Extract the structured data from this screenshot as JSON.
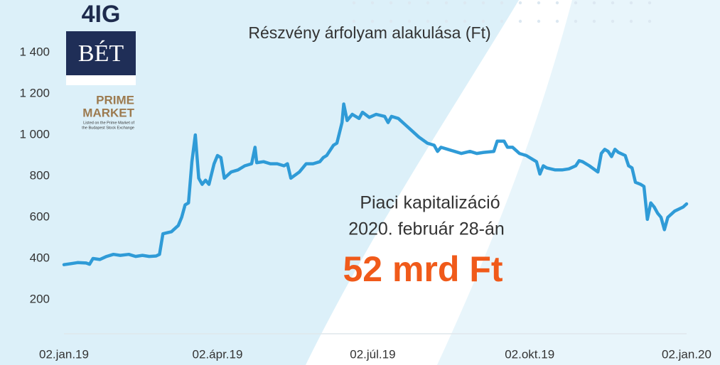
{
  "logo": {
    "company": "4IG",
    "exchange": "BÉT",
    "line1": "PRIME",
    "line2": "MARKET",
    "caption1": "Listed on the Prime Market of",
    "caption2": "the Budapest Stock Exchange"
  },
  "chart_data": {
    "type": "line",
    "title": "Részvény árfolyam alakulása (Ft)",
    "annotations": [
      "Piaci kapitalizáció",
      "2020. február 28-án",
      "52 mrd Ft"
    ],
    "color": "#2f9bd7",
    "x": [
      0,
      4,
      8,
      13,
      15,
      17,
      21,
      25,
      29,
      33,
      38,
      42,
      46,
      50,
      54,
      56,
      58,
      63,
      67,
      69,
      71,
      73,
      75,
      77,
      79,
      81,
      83,
      85,
      88,
      90,
      92,
      94,
      98,
      102,
      106,
      110,
      112,
      113,
      117,
      121,
      125,
      129,
      131,
      133,
      138,
      142,
      146,
      150,
      152,
      154,
      158,
      160,
      163,
      164,
      166,
      169,
      173,
      175,
      179,
      183,
      188,
      190,
      192,
      196,
      200,
      204,
      208,
      213,
      217,
      219,
      221,
      225,
      229,
      233,
      238,
      242,
      246,
      252,
      254,
      258,
      260,
      263,
      267,
      271,
      275,
      277,
      279,
      281,
      283,
      288,
      292,
      296,
      300,
      302,
      304,
      308,
      313,
      315,
      317,
      319,
      321,
      323,
      325,
      329,
      331,
      333,
      335,
      338,
      340,
      342,
      344,
      346,
      348,
      350,
      352,
      354,
      358,
      363,
      365
    ],
    "values": [
      370,
      375,
      380,
      378,
      372,
      400,
      395,
      410,
      420,
      415,
      420,
      410,
      415,
      410,
      412,
      420,
      520,
      530,
      560,
      600,
      660,
      670,
      870,
      1000,
      790,
      760,
      780,
      760,
      860,
      900,
      890,
      790,
      820,
      830,
      850,
      860,
      940,
      865,
      870,
      860,
      860,
      850,
      860,
      790,
      820,
      860,
      860,
      870,
      890,
      900,
      950,
      960,
      1060,
      1150,
      1070,
      1100,
      1080,
      1110,
      1085,
      1100,
      1090,
      1060,
      1090,
      1080,
      1050,
      1020,
      990,
      960,
      950,
      920,
      940,
      930,
      920,
      910,
      920,
      910,
      915,
      920,
      970,
      970,
      940,
      940,
      910,
      900,
      880,
      870,
      810,
      850,
      840,
      830,
      830,
      835,
      850,
      875,
      870,
      850,
      820,
      910,
      930,
      920,
      895,
      930,
      915,
      900,
      850,
      840,
      770,
      760,
      750,
      590,
      670,
      650,
      620,
      600,
      540,
      600,
      630,
      650,
      665
    ],
    "xlim": [
      0,
      365
    ],
    "xticks": [
      {
        "value": 0,
        "label": "02.jan.19"
      },
      {
        "value": 90,
        "label": "02.ápr.19"
      },
      {
        "value": 181,
        "label": "02.júl.19"
      },
      {
        "value": 273,
        "label": "02.okt.19"
      },
      {
        "value": 365,
        "label": "02.jan.20"
      }
    ],
    "ylim": [
      0,
      1400
    ],
    "yticks": [
      200,
      400,
      600,
      800,
      {
        "value": 1000,
        "label": "1 000"
      },
      {
        "value": 1200,
        "label": "1 200"
      },
      {
        "value": 1400,
        "label": "1 400"
      }
    ],
    "grid": false
  }
}
